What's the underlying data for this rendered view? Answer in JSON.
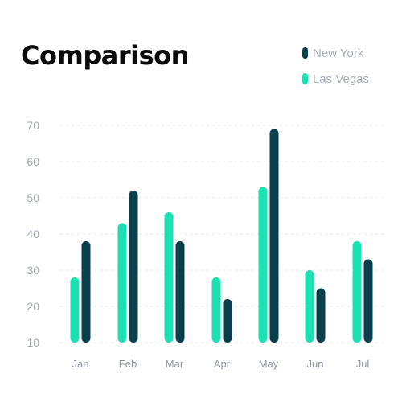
{
  "chart_data": {
    "type": "bar",
    "title": "Comparison",
    "categories": [
      "Jan",
      "Feb",
      "Mar",
      "Apr",
      "May",
      "Jun",
      "Jul"
    ],
    "series": [
      {
        "name": "Las Vegas",
        "color": "#1be0b3",
        "values": [
          28,
          43,
          46,
          28,
          53,
          30,
          38
        ]
      },
      {
        "name": "New York",
        "color": "#0a3f4e",
        "values": [
          38,
          52,
          38,
          22,
          69,
          25,
          33
        ]
      }
    ],
    "legend_order": [
      "New York",
      "Las Vegas"
    ],
    "y_ticks": [
      10,
      20,
      30,
      40,
      50,
      60,
      70
    ],
    "ylim": [
      10,
      70
    ],
    "grid": true,
    "legend_placement": "top-right"
  }
}
